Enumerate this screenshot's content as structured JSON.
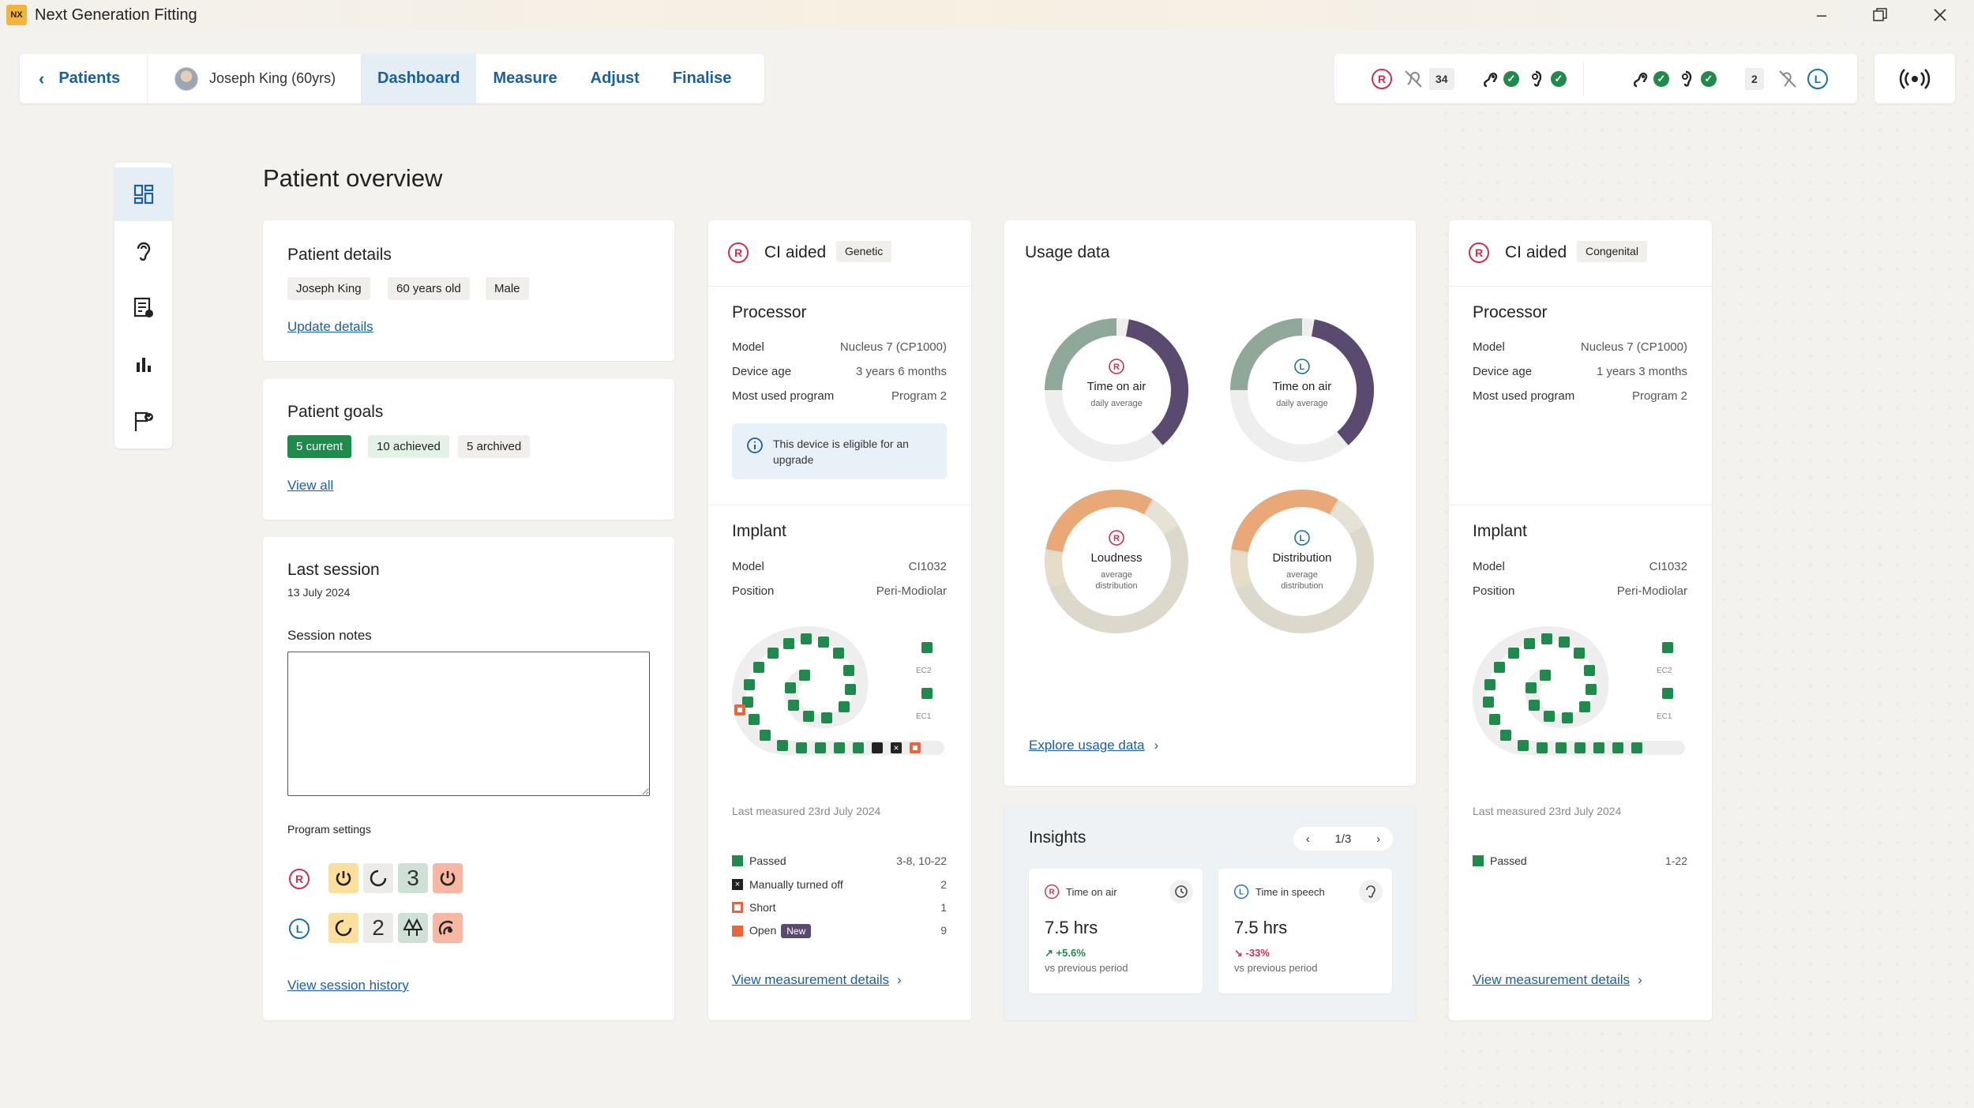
{
  "app": {
    "logo": "NX",
    "title": "Next Generation Fitting"
  },
  "topnav": {
    "back_label": "Patients",
    "patient_label": "Joseph King (60yrs)",
    "tabs": [
      {
        "label": "Dashboard",
        "active": true
      },
      {
        "label": "Measure"
      },
      {
        "label": "Adjust"
      },
      {
        "label": "Finalise"
      }
    ]
  },
  "status": {
    "right_count": "34",
    "left_count": "2",
    "r": "R",
    "l": "L"
  },
  "page": {
    "title": "Patient overview"
  },
  "patient_details": {
    "title": "Patient details",
    "chips": [
      "Joseph King",
      "60 years old",
      "Male"
    ],
    "link": "Update details"
  },
  "patient_goals": {
    "title": "Patient goals",
    "chips": [
      "5 current",
      "10 achieved",
      "5 archived"
    ],
    "link": "View all"
  },
  "last_session": {
    "title": "Last session",
    "date": "13 July 2024",
    "notes_label": "Session notes",
    "notes_value": "",
    "program_settings_label": "Program settings",
    "right_side": "R",
    "left_side": "L",
    "right_program_3": "3",
    "left_program_2": "2",
    "link": "View session history"
  },
  "ci_right": {
    "side": "R",
    "title": "CI aided",
    "tag": "Genetic",
    "processor": {
      "title": "Processor",
      "rows": [
        {
          "label": "Model",
          "value": "Nucleus 7 (CP1000)"
        },
        {
          "label": "Device age",
          "value": "3 years 6 months"
        },
        {
          "label": "Most used program",
          "value": "Program 2"
        }
      ],
      "notice": "This device is eligible for an upgrade"
    },
    "implant": {
      "title": "Implant",
      "rows": [
        {
          "label": "Model",
          "value": "CI1032"
        },
        {
          "label": "Position",
          "value": "Peri-Modiolar"
        }
      ],
      "ec2": "EC2",
      "ec1": "EC1",
      "last_measured": "Last measured 23rd July 2024",
      "legend": [
        {
          "label": "Passed",
          "value": "3-8, 10-22",
          "color": "#1f8a4c"
        },
        {
          "label": "Manually turned off",
          "value": "2",
          "color": "#222222"
        },
        {
          "label": "Short",
          "value": "1",
          "color": "#e8663d"
        },
        {
          "label": "Open",
          "value": "9",
          "color": "#e8663d",
          "badge": "New"
        }
      ]
    },
    "link": "View measurement details"
  },
  "usage": {
    "title": "Usage data",
    "donuts": [
      {
        "side": "R",
        "title": "Time on air",
        "sub": "daily average",
        "color": "#5b4a6f"
      },
      {
        "side": "L",
        "title": "Time on air",
        "sub": "daily average",
        "color": "#5b4a6f"
      },
      {
        "side": "R",
        "title": "Loudness",
        "sub": "average distribution",
        "color": "#e8a878"
      },
      {
        "side": "L",
        "title": "Distribution",
        "sub": "average distribution",
        "color": "#e8a878"
      }
    ],
    "link": "Explore usage data"
  },
  "insights": {
    "title": "Insights",
    "page": "1/3",
    "cards": [
      {
        "side": "R",
        "label": "Time on air",
        "value": "7.5 hrs",
        "change": "+5.6%",
        "period": "vs previous period",
        "trend": "up"
      },
      {
        "side": "L",
        "label": "Time in speech",
        "value": "7.5 hrs",
        "change": "-33%",
        "period": "vs previous period",
        "trend": "down"
      }
    ]
  },
  "ci_left": {
    "side": "R",
    "title": "CI aided",
    "tag": "Congenital",
    "processor": {
      "title": "Processor",
      "rows": [
        {
          "label": "Model",
          "value": "Nucleus 7 (CP1000)"
        },
        {
          "label": "Device age",
          "value": "1 years 3 months"
        },
        {
          "label": "Most used program",
          "value": "Program 2"
        }
      ]
    },
    "implant": {
      "title": "Implant",
      "rows": [
        {
          "label": "Model",
          "value": "CI1032"
        },
        {
          "label": "Position",
          "value": "Peri-Modiolar"
        }
      ],
      "ec2": "EC2",
      "ec1": "EC1",
      "last_measured": "Last measured 23rd July 2024",
      "legend": [
        {
          "label": "Passed",
          "value": "1-22",
          "color": "#1f8a4c"
        }
      ]
    },
    "link": "View measurement details"
  },
  "colors": {
    "accent": "#1a5f9e",
    "green": "#1f8a4c",
    "right": "#c8334f",
    "left": "#1a6fb0",
    "orange": "#e8663d"
  }
}
